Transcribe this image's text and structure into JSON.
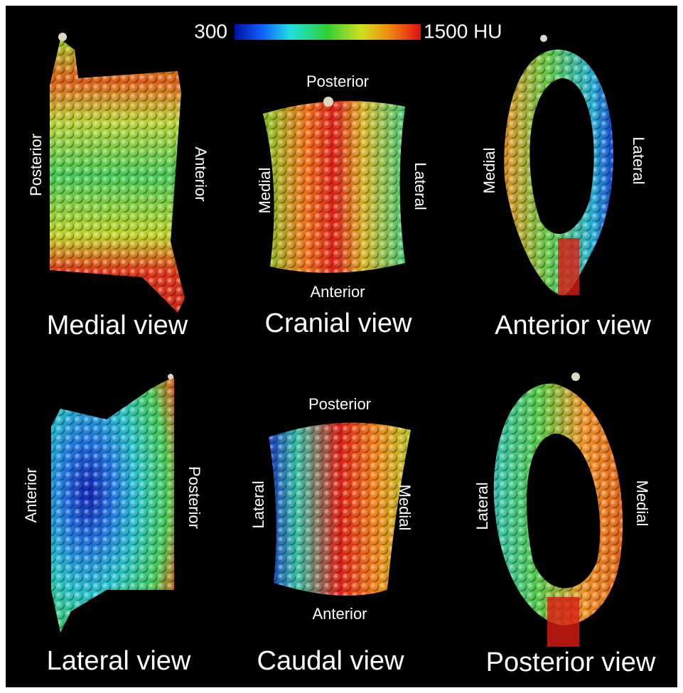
{
  "colorbar": {
    "min_label": "300",
    "max_label": "1500 HU"
  },
  "panels": [
    {
      "title": "Medial view",
      "left": "Posterior",
      "right": "Anterior"
    },
    {
      "title": "Cranial view",
      "top": "Posterior",
      "bottom": "Anterior",
      "left": "Medial",
      "right": "Lateral"
    },
    {
      "title": "Anterior view",
      "left": "Medial",
      "right": "Lateral"
    },
    {
      "title": "Lateral view",
      "left": "Anterior",
      "right": "Posterior"
    },
    {
      "title": "Caudal view",
      "top": "Posterior",
      "bottom": "Anterior",
      "left": "Lateral",
      "right": "Medial"
    },
    {
      "title": "Posterior view",
      "left": "Lateral",
      "right": "Medial"
    }
  ]
}
